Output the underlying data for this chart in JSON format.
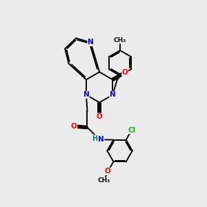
{
  "background_color": "#ebebeb",
  "bond_color": "black",
  "atom_colors": {
    "N": "#0000ff",
    "O": "#ff0000",
    "Cl": "#00bb00",
    "C": "black",
    "H": "#008080"
  },
  "figsize": [
    3.0,
    3.0
  ],
  "dpi": 100
}
